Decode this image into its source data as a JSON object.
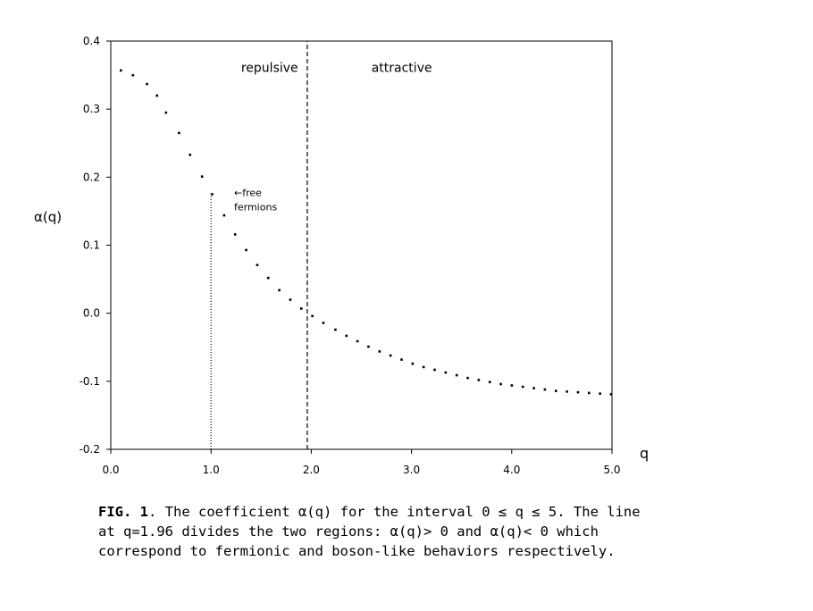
{
  "chart_data": {
    "type": "scatter",
    "title": "",
    "xlabel": "q",
    "ylabel": "α(q)",
    "xlim": [
      0.0,
      5.0
    ],
    "ylim": [
      -0.2,
      0.4
    ],
    "xticks": [
      "0.0",
      "1.0",
      "2.0",
      "3.0",
      "4.0",
      "5.0"
    ],
    "yticks": [
      "-0.2",
      "-0.1",
      "0.0",
      "0.1",
      "0.2",
      "0.3",
      "0.4"
    ],
    "grid": false,
    "series": [
      {
        "x": [
          0.1,
          0.22,
          0.36,
          0.46,
          0.55,
          0.68,
          0.79,
          0.91,
          1.01,
          1.13,
          1.24,
          1.35,
          1.46,
          1.57,
          1.68,
          1.79,
          1.9,
          2.01,
          2.12,
          2.24,
          2.35,
          2.46,
          2.57,
          2.68,
          2.79,
          2.9,
          3.01,
          3.12,
          3.23,
          3.34,
          3.45,
          3.56,
          3.67,
          3.78,
          3.89,
          4.0,
          4.11,
          4.22,
          4.33,
          4.44,
          4.55,
          4.66,
          4.77,
          4.88,
          4.99
        ],
        "y": [
          0.357,
          0.35,
          0.337,
          0.32,
          0.295,
          0.265,
          0.233,
          0.201,
          0.175,
          0.144,
          0.116,
          0.093,
          0.071,
          0.052,
          0.034,
          0.02,
          0.007,
          -0.004,
          -0.014,
          -0.024,
          -0.033,
          -0.041,
          -0.049,
          -0.056,
          -0.062,
          -0.068,
          -0.074,
          -0.079,
          -0.083,
          -0.087,
          -0.091,
          -0.095,
          -0.098,
          -0.101,
          -0.104,
          -0.106,
          -0.108,
          -0.11,
          -0.112,
          -0.114,
          -0.115,
          -0.116,
          -0.117,
          -0.118,
          -0.119
        ]
      }
    ],
    "vlines": [
      {
        "x": 1.96,
        "style": "dashed"
      },
      {
        "x": 1.0,
        "style": "dotted",
        "ymax": 0.175
      }
    ],
    "annotations": [
      {
        "text": "repulsive",
        "x": 1.3,
        "y": 0.355
      },
      {
        "text": "attractive",
        "x": 2.6,
        "y": 0.355
      },
      {
        "text": "←free",
        "x": 1.23,
        "y": 0.172
      },
      {
        "text": "fermions",
        "x": 1.23,
        "y": 0.151
      }
    ]
  },
  "caption": {
    "label": "FIG. 1",
    "line1": ". The coefficient α(q) for the interval 0 ≤ q ≤ 5. The line",
    "line2": "at q=1.96 divides the two regions: α(q)> 0 and α(q)< 0 which",
    "line3": "correspond to fermionic and boson-like behaviors respectively."
  }
}
